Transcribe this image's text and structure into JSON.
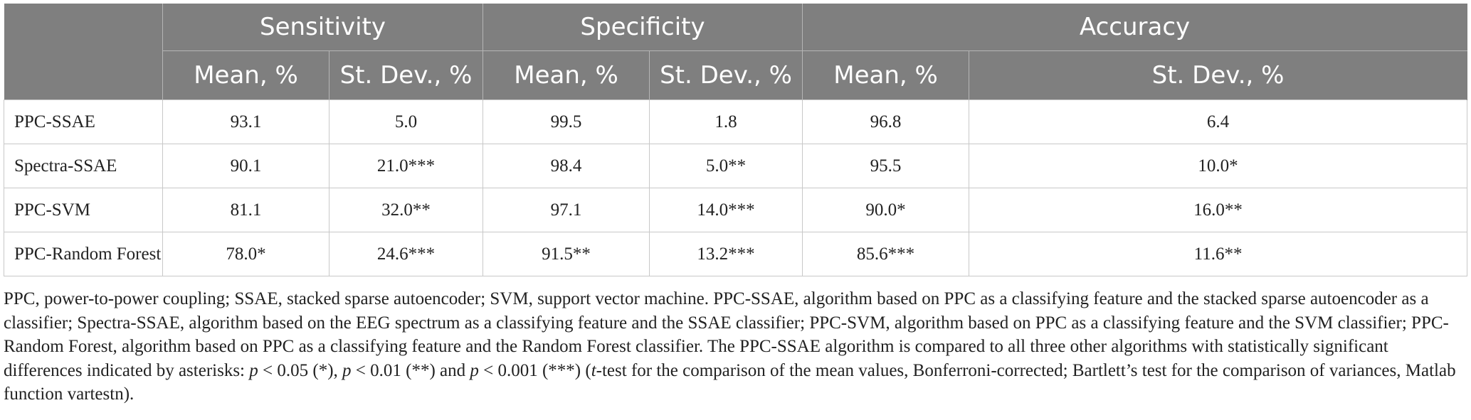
{
  "table": {
    "groups": [
      "Sensitivity",
      "Specificity",
      "Accuracy"
    ],
    "subheaders": [
      "Mean, %",
      "St. Dev., %",
      "Mean, %",
      "St. Dev., %",
      "Mean, %",
      "St. Dev., %"
    ],
    "rows": [
      {
        "label": "PPC-SSAE",
        "cells": [
          "93.1",
          "5.0",
          "99.5",
          "1.8",
          "96.8",
          "6.4"
        ]
      },
      {
        "label": "Spectra-SSAE",
        "cells": [
          "90.1",
          "21.0***",
          "98.4",
          "5.0**",
          "95.5",
          "10.0*"
        ]
      },
      {
        "label": "PPC-SVM",
        "cells": [
          "81.1",
          "32.0**",
          "97.1",
          "14.0***",
          "90.0*",
          "16.0**"
        ]
      },
      {
        "label": "PPC-Random Forest",
        "cells": [
          "78.0*",
          "24.6***",
          "91.5**",
          "13.2***",
          "85.6***",
          "11.6**"
        ]
      }
    ]
  },
  "footnote": {
    "part1": "PPC, power-to-power coupling; SSAE, stacked sparse autoencoder; SVM, support vector machine. PPC-SSAE, algorithm based on PPC as a classifying feature and the stacked sparse autoencoder as a classifier; Spectra-SSAE, algorithm based on the EEG spectrum as a classifying feature and the SSAE classifier; PPC-SVM, algorithm based on PPC as a classifying feature and the SVM classifier; PPC-Random Forest, algorithm based on PPC as a classifying feature and the Random Forest classifier. The PPC-SSAE algorithm is compared to all three other algorithms with statistically significant differences indicated by asterisks: ",
    "p1": "p",
    "part2": " < 0.05 (*), ",
    "p2": "p",
    "part3": " < 0.01 (**) and ",
    "p3": "p",
    "part4": " < 0.001 (***) (",
    "t": "t",
    "part5": "-test for the comparison of the mean values, Bonferroni-corrected; Bartlett’s test for the comparison of variances, Matlab function vartestn)."
  }
}
